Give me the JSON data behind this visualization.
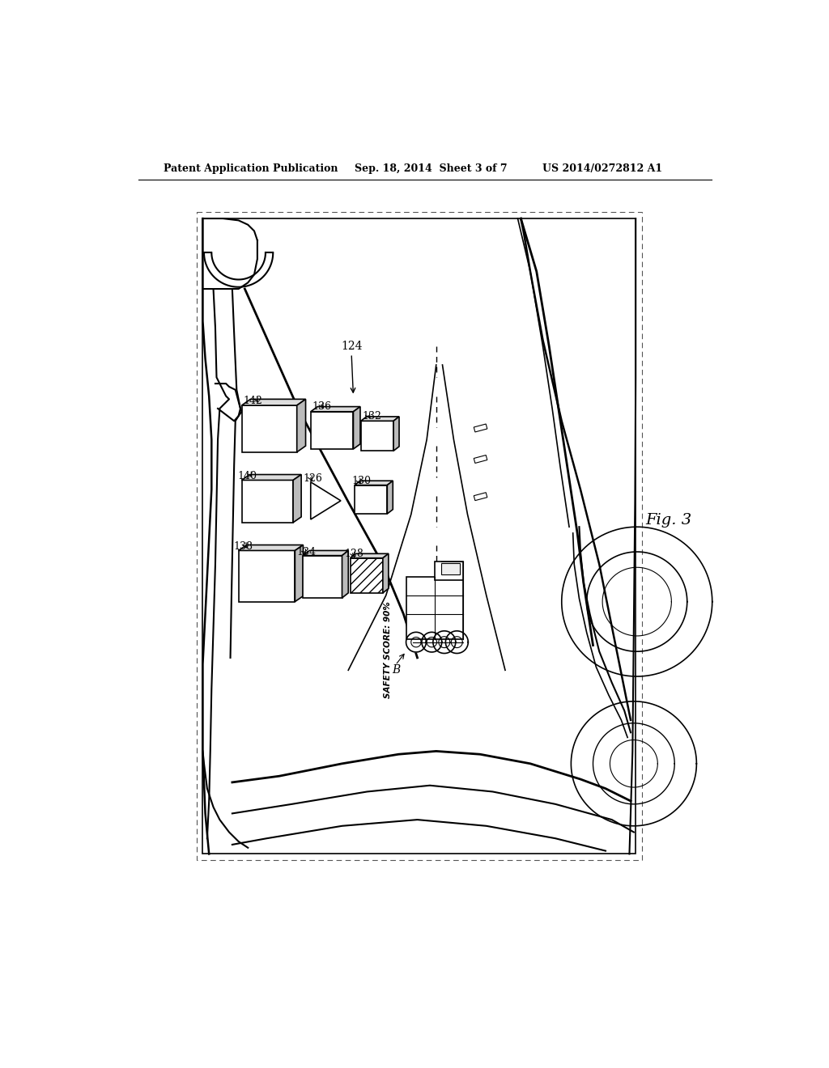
{
  "title_left": "Patent Application Publication",
  "title_center": "Sep. 18, 2014  Sheet 3 of 7",
  "title_right": "US 2014/0272812 A1",
  "fig_label": "Fig. 3",
  "background_color": "#ffffff",
  "line_color": "#000000",
  "label_fontsize": 9,
  "header_fontsize": 9,
  "fig_label_fontsize": 14
}
